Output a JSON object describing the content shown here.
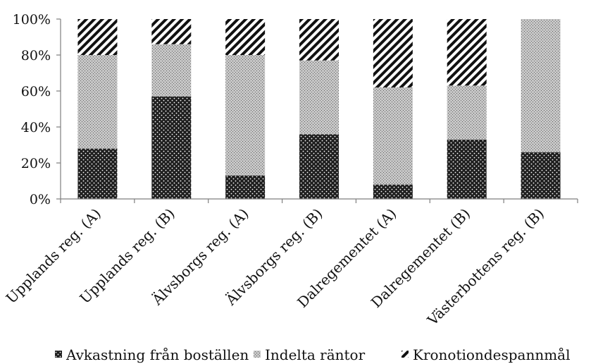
{
  "chart_data": {
    "type": "bar",
    "stacked": true,
    "normalized": true,
    "categories": [
      "Upplands reg. (A)",
      "Upplands reg. (B)",
      "Älvsborgs reg. (A)",
      "Älvsborgs reg. (B)",
      "Dalregementet (A)",
      "Dalregementet (B)",
      "Västerbottens reg. (B)"
    ],
    "series": [
      {
        "name": "Avkastning från boställen",
        "values": [
          28,
          57,
          13,
          36,
          8,
          33,
          26
        ],
        "pattern": "dots",
        "color": "#111111"
      },
      {
        "name": "Indelta räntor",
        "values": [
          52,
          29,
          67,
          41,
          54,
          30,
          74
        ],
        "pattern": "stipple",
        "color": "#bfbfbf"
      },
      {
        "name": "Kronotiondespannmål",
        "values": [
          20,
          14,
          20,
          23,
          38,
          37,
          0
        ],
        "pattern": "diagonal",
        "color": "#111111"
      }
    ],
    "yticks": [
      "0%",
      "20%",
      "40%",
      "60%",
      "80%",
      "100%"
    ],
    "ylim": [
      0,
      100
    ],
    "grid": false,
    "legend": "bottom",
    "title": "",
    "xlabel": "",
    "ylabel": ""
  }
}
